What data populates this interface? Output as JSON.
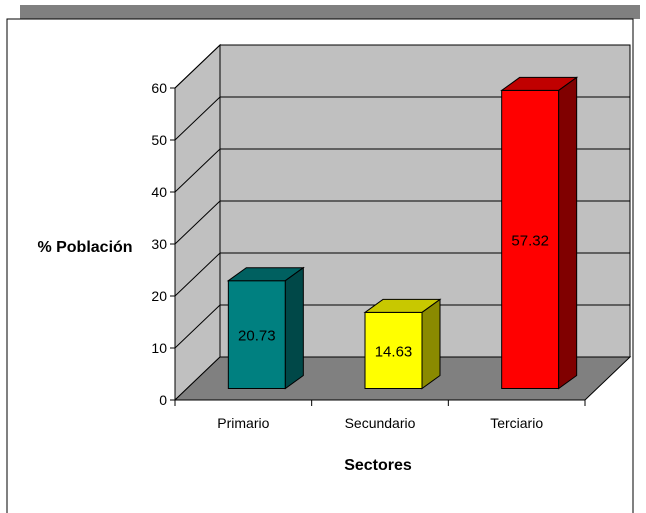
{
  "chart_data": {
    "type": "bar",
    "categories": [
      "Primario",
      "Secundario",
      "Terciario"
    ],
    "values": [
      20.73,
      14.63,
      57.32
    ],
    "data_labels": [
      "20.73",
      "14.63",
      "57.32"
    ],
    "xlabel": "Sectores",
    "ylabel": "% Población",
    "ylim": [
      0,
      60
    ],
    "yticks": [
      "0",
      "10",
      "20",
      "30",
      "40",
      "50",
      "60"
    ],
    "grid": true,
    "three_d": true,
    "bar_colors": [
      {
        "front": "#008080",
        "top": "#006060",
        "side": "#004848"
      },
      {
        "front": "#ffff00",
        "top": "#c8c800",
        "side": "#8a8a00"
      },
      {
        "front": "#ff0000",
        "top": "#c00000",
        "side": "#800000"
      }
    ],
    "wall_color": "#c0c0c0",
    "floor_color": "#808080",
    "banner_color": "#808080"
  }
}
